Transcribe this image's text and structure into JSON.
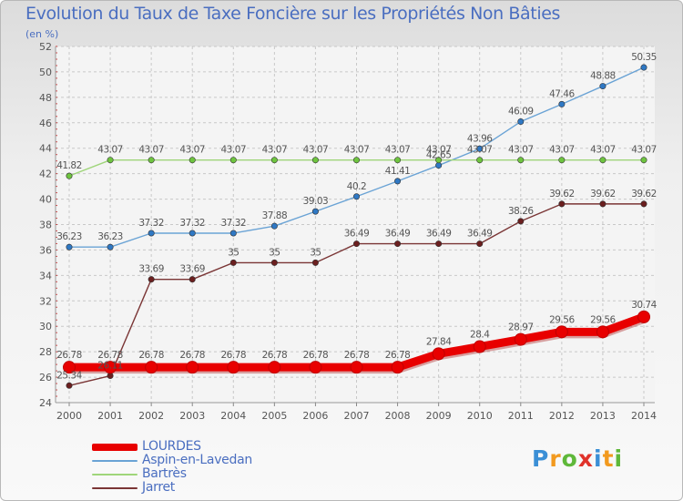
{
  "title": "Evolution du Taux de Taxe Foncière sur les Propriétés Non Bâties",
  "unit_label": "(en %)",
  "logo": {
    "text": "Proxiti",
    "letters": [
      {
        "ch": "P",
        "color": "#3b8fd6"
      },
      {
        "ch": "r",
        "color": "#f29a1f"
      },
      {
        "ch": "o",
        "color": "#5fb83a"
      },
      {
        "ch": "x",
        "color": "#e0322a"
      },
      {
        "ch": "i",
        "color": "#3b8fd6"
      },
      {
        "ch": "t",
        "color": "#f29a1f"
      },
      {
        "ch": "i",
        "color": "#5fb83a"
      }
    ]
  },
  "chart_data": {
    "type": "line",
    "title": "Evolution du Taux de Taxe Foncière sur les Propriétés Non Bâties",
    "ylabel": "(en %)",
    "xlabel": "",
    "ylim": [
      24,
      52
    ],
    "yticks": [
      24,
      26,
      28,
      30,
      32,
      34,
      36,
      38,
      40,
      42,
      44,
      46,
      48,
      50,
      52
    ],
    "grid": true,
    "legend_position": "bottom-left",
    "x": [
      "2000",
      "2001",
      "2002",
      "2003",
      "2004",
      "2005",
      "2006",
      "2007",
      "2008",
      "2009",
      "2010",
      "2011",
      "2012",
      "2013",
      "2014"
    ],
    "series": [
      {
        "name": "LOURDES",
        "color": "#e80000",
        "bold": true,
        "values": [
          26.78,
          26.78,
          26.78,
          26.78,
          26.78,
          26.78,
          26.78,
          26.78,
          26.78,
          27.84,
          28.4,
          28.97,
          29.56,
          29.56,
          30.74
        ],
        "labels": [
          "26.78",
          "26.78",
          "26.78",
          "26.78",
          "26.78",
          "26.78",
          "26.78",
          "26.78",
          "26.78",
          "27.84",
          "28.4",
          "28.97",
          "29.56",
          "29.56",
          "30.74"
        ]
      },
      {
        "name": "Aspin-en-Lavedan",
        "color": "#6aa3d5",
        "marker": "#2f78c4",
        "values": [
          36.23,
          36.23,
          37.32,
          37.32,
          37.32,
          37.88,
          39.03,
          40.2,
          41.41,
          42.65,
          43.96,
          46.09,
          47.46,
          48.88,
          50.35
        ],
        "labels": [
          "36.23",
          "36.23",
          "37.32",
          "37.32",
          "37.32",
          "37.88",
          "39.03",
          "40.2",
          "41.41",
          "42.65",
          "43.96",
          "46.09",
          "47.46",
          "48.88",
          "50.35"
        ]
      },
      {
        "name": "Bartrès",
        "color": "#9fd57a",
        "marker": "#6ec43f",
        "values": [
          41.82,
          43.07,
          43.07,
          43.07,
          43.07,
          43.07,
          43.07,
          43.07,
          43.07,
          43.07,
          43.07,
          43.07,
          43.07,
          43.07,
          43.07
        ],
        "labels": [
          "41.82",
          "43.07",
          "43.07",
          "43.07",
          "43.07",
          "43.07",
          "43.07",
          "43.07",
          "43.07",
          "43.07",
          "43.07",
          "43.07",
          "43.07",
          "43.07",
          "43.07"
        ]
      },
      {
        "name": "Jarret",
        "color": "#7a3535",
        "marker": "#6b1f1f",
        "values": [
          25.34,
          26.11,
          33.69,
          33.69,
          35,
          35,
          35,
          36.49,
          36.49,
          36.49,
          36.49,
          38.26,
          39.62,
          39.62,
          39.62
        ],
        "labels": [
          "25.34",
          "26.11",
          "33.69",
          "33.69",
          "35",
          "35",
          "35",
          "36.49",
          "36.49",
          "36.49",
          "36.49",
          "38.26",
          "39.62",
          "39.62",
          "39.62"
        ]
      }
    ]
  }
}
